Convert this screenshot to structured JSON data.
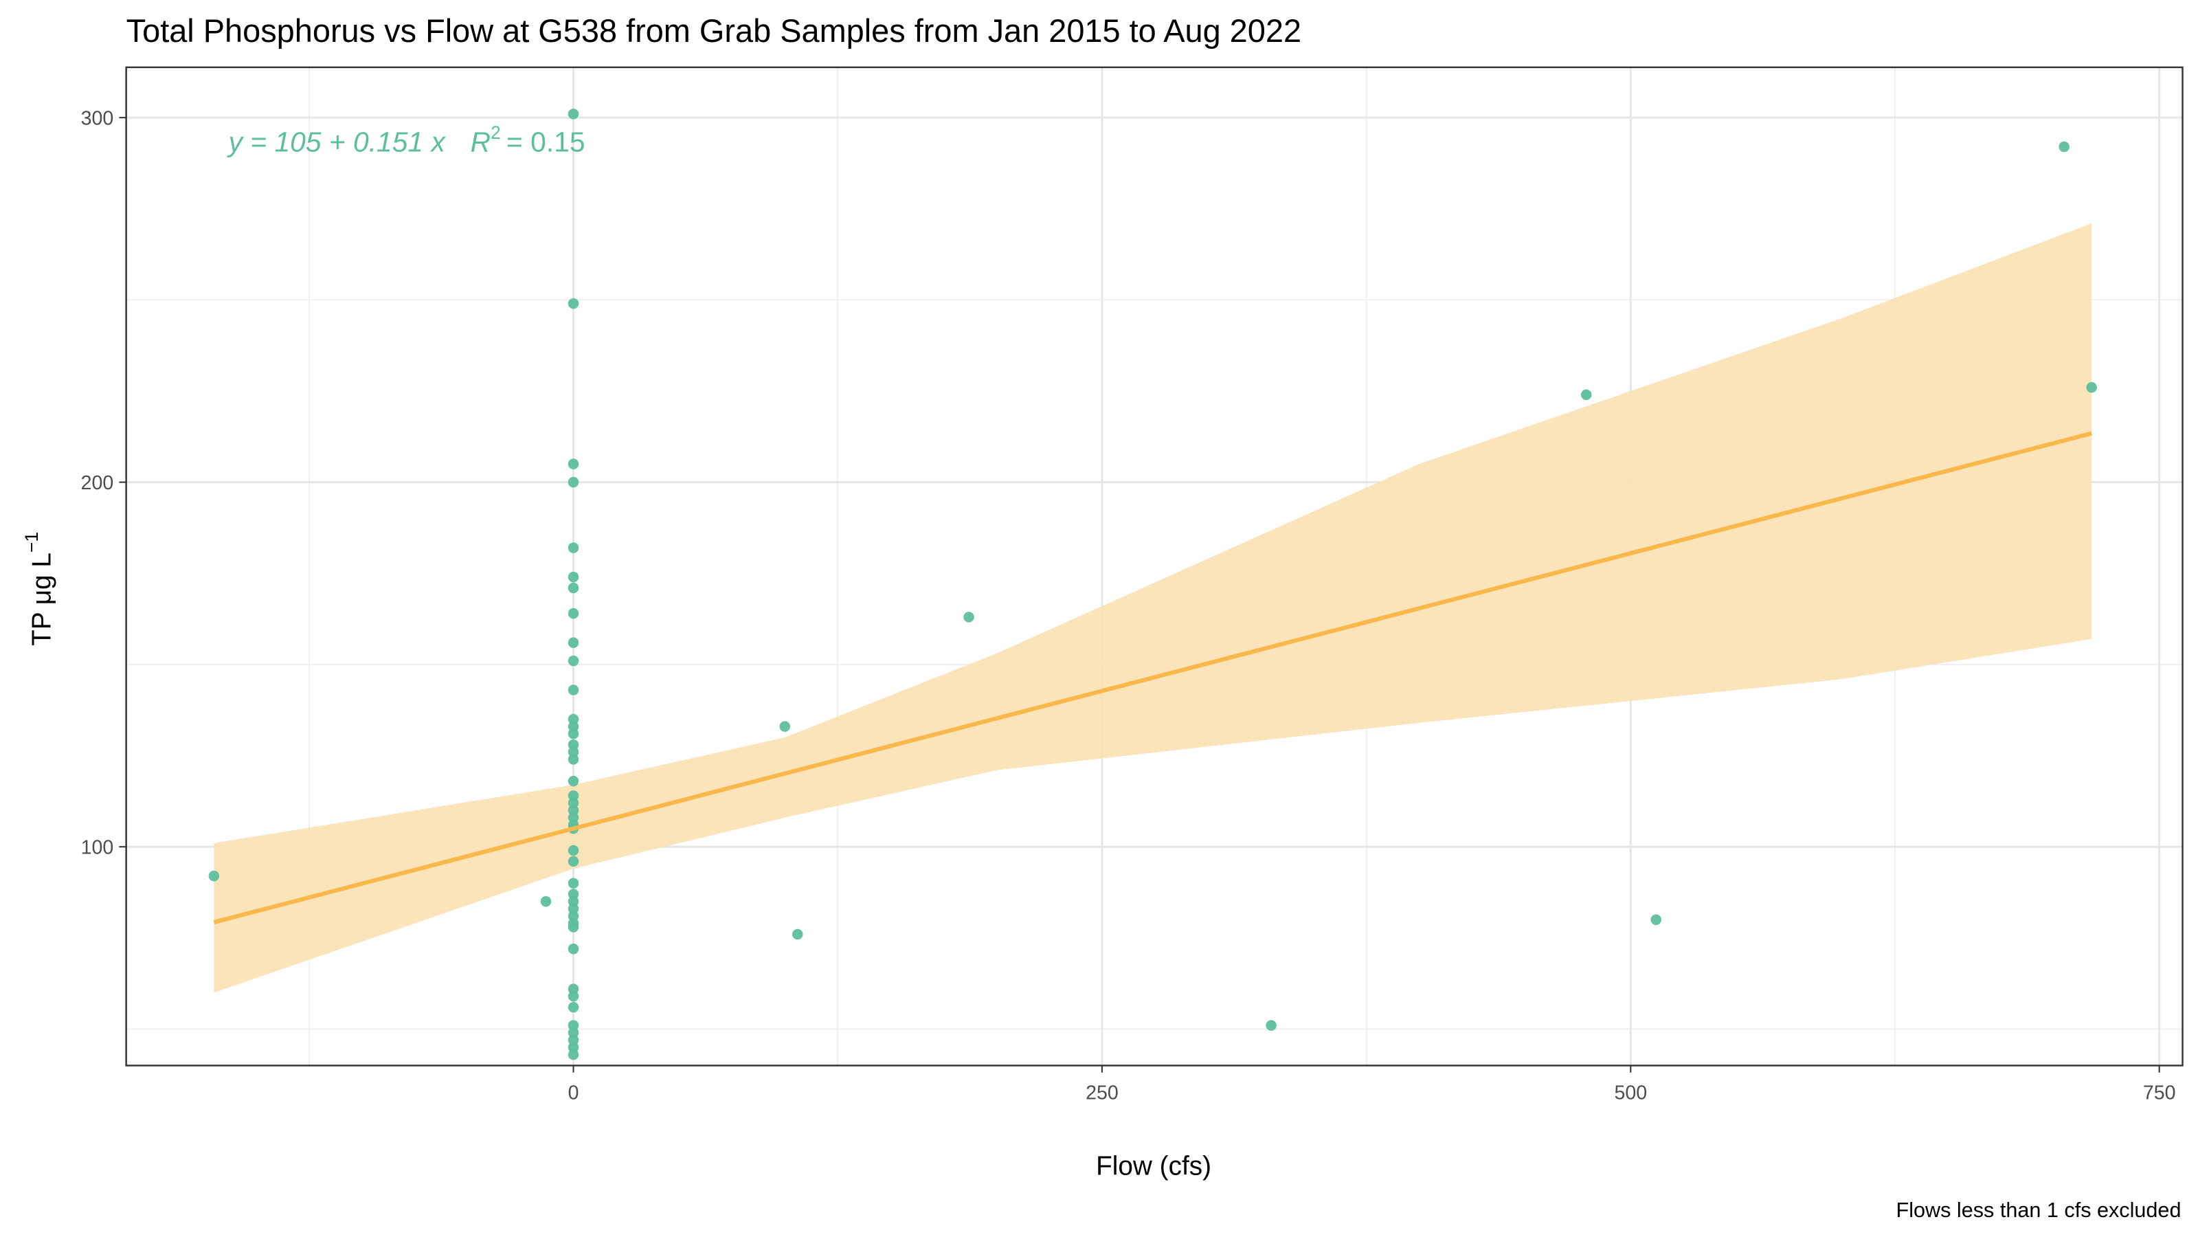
{
  "chart_data": {
    "type": "scatter",
    "title": "Total Phosphorus vs Flow at G538 from Grab Samples from Jan 2015 to Aug 2022",
    "x_label": "Flow (cfs)",
    "y_label": "TP μg L",
    "y_label_exponent": "−1",
    "caption": "Flows less than 1 cfs excluded",
    "annotation": {
      "equation": "y = 105 + 0.151 x",
      "r2_symbol": "R",
      "r2_exponent": "2",
      "r2_text": "= 0.15",
      "color": "#5cbf9c"
    },
    "xlim": [
      -211.5,
      761
    ],
    "ylim": [
      40,
      313.8
    ],
    "xticks": [
      0,
      250,
      500,
      750
    ],
    "yticks": [
      100,
      200,
      300
    ],
    "x_minor_ticks": [
      -125,
      125,
      375,
      625
    ],
    "y_minor_ticks": [
      50,
      150,
      250
    ],
    "grid": true,
    "series": [
      {
        "color": "#5cbf9c",
        "x": [
          0,
          0,
          0,
          0,
          0,
          0,
          0,
          0,
          0,
          0,
          0,
          0,
          0,
          0,
          0,
          0,
          0,
          0,
          0,
          0,
          0,
          0,
          0,
          0,
          0,
          0,
          0,
          0,
          0,
          0,
          0,
          0,
          0,
          0,
          0,
          0,
          0,
          0,
          0,
          0,
          0,
          0,
          -170,
          -13,
          100,
          106,
          187,
          330,
          479,
          512,
          705,
          718
        ],
        "values": [
          301,
          249,
          205,
          200,
          182,
          174,
          171,
          164,
          156,
          151,
          143,
          135,
          133,
          131,
          128,
          126,
          124,
          118,
          114,
          112,
          110,
          108,
          106,
          105,
          99,
          96,
          90,
          87,
          85,
          83,
          81,
          79,
          78,
          72,
          61,
          59,
          56,
          51,
          49,
          47,
          45,
          43,
          92,
          85,
          133,
          76,
          163,
          51,
          224,
          80,
          292,
          226
        ]
      }
    ],
    "fit": {
      "color": "#fbb84a",
      "band_color": "#fbe0b2",
      "x": [
        -170,
        0,
        100,
        200,
        400,
        600,
        718
      ],
      "values": [
        79.3,
        105,
        120.1,
        135.2,
        165.4,
        195.6,
        213.4
      ],
      "lower": [
        60,
        94,
        108,
        121,
        134,
        146,
        157
      ],
      "upper": [
        101,
        117,
        130,
        153,
        205,
        245,
        271
      ]
    }
  }
}
